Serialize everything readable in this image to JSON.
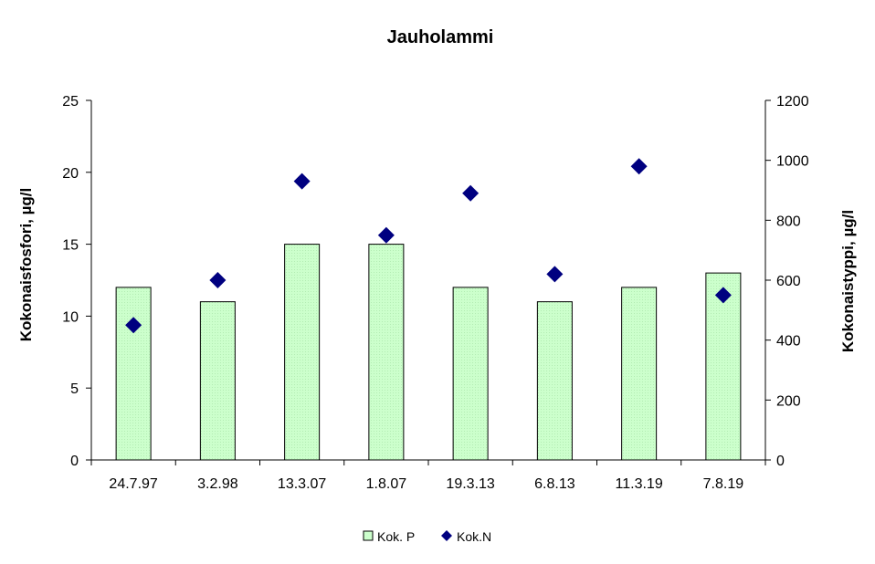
{
  "chart_data": {
    "type": "bar",
    "title": "Jauholammi",
    "categories": [
      "24.7.97",
      "3.2.98",
      "13.3.07",
      "1.8.07",
      "19.3.13",
      "6.8.13",
      "11.3.19",
      "7.8.19"
    ],
    "series": [
      {
        "name": "Kok. P",
        "type": "bar",
        "axis": "left",
        "color": "#ccffcc",
        "values": [
          12,
          11,
          15,
          15,
          12,
          11,
          12,
          13
        ]
      },
      {
        "name": "Kok.N",
        "type": "scatter",
        "axis": "right",
        "marker": "diamond",
        "color": "#000080",
        "values": [
          450,
          600,
          930,
          750,
          890,
          620,
          980,
          550
        ]
      }
    ],
    "ylabel": "Kokonaisfosfori, µg/l",
    "ylabel_right": "Kokonaistyppi, µg/l",
    "xlabel": "",
    "ylim": [
      0,
      25
    ],
    "ylim_right": [
      0,
      1200
    ],
    "yticks": [
      "0",
      "5",
      "10",
      "15",
      "20",
      "25"
    ],
    "yticks_right": [
      "0",
      "200",
      "400",
      "600",
      "800",
      "1000",
      "1200"
    ],
    "grid": false,
    "legend_position": "bottom"
  }
}
